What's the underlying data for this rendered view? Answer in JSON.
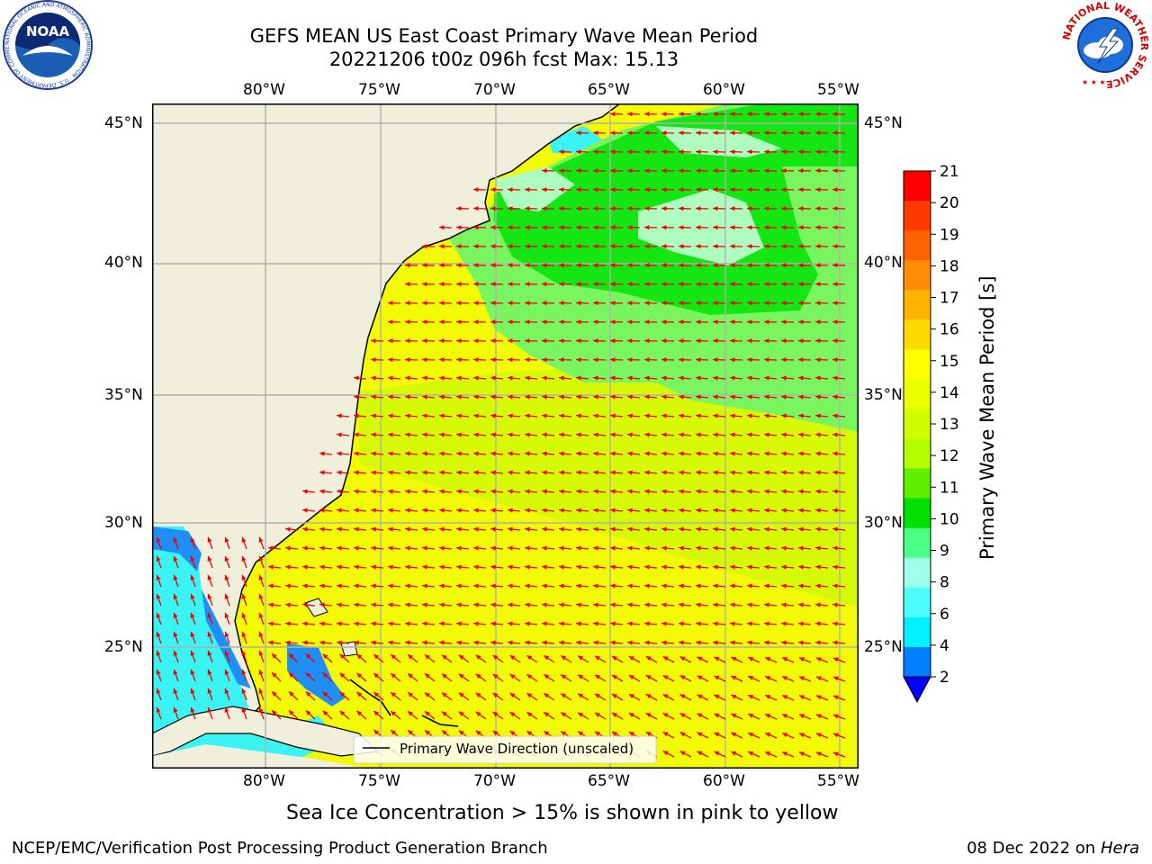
{
  "title": {
    "line1": "GEFS MEAN US East Coast Primary Wave Mean Period",
    "line2": "20221206 t00z 096h fcst   Max: 15.13"
  },
  "map": {
    "lon_labels": [
      "80°W",
      "75°W",
      "70°W",
      "65°W",
      "60°W",
      "55°W"
    ],
    "lat_labels": [
      "45°N",
      "40°N",
      "35°N",
      "30°N",
      "25°N"
    ],
    "legend_label": "Primary Wave Direction (unscaled)",
    "colors": {
      "land": "#efefdc",
      "yellow": "#f2fa05",
      "yellow_green": "#d6fa05",
      "light_green": "#79f55f",
      "green": "#14e614",
      "mint": "#aefcc0",
      "cyan": "#3af4f4",
      "blue": "#1f8ff5",
      "arrow": "#f00000",
      "grid": "#b0b0b0"
    }
  },
  "colorbar": {
    "label": "Primary Wave Mean Period [s]",
    "ticks": [
      "21",
      "20",
      "19",
      "18",
      "17",
      "16",
      "15",
      "14",
      "13",
      "12",
      "11",
      "10",
      "9",
      "8",
      "6",
      "4",
      "2"
    ],
    "colors": [
      "#ff0000",
      "#ff3a00",
      "#ff6200",
      "#ff8c00",
      "#ffb400",
      "#ffdc00",
      "#ffff00",
      "#eaff00",
      "#d2ff00",
      "#b4ff00",
      "#5ff000",
      "#00e100",
      "#4cff86",
      "#a0ffe8",
      "#4cfdfd",
      "#00f0ff",
      "#0080ff",
      "#0000ff"
    ]
  },
  "subnote": "Sea Ice Concentration > 15% is shown in pink to yellow",
  "footer": {
    "left": "NCEP/EMC/Verification Post Processing Product Generation Branch",
    "right_date": "08 Dec 2022 on",
    "right_machine": "Hera"
  },
  "logos": {
    "noaa_text": "NOAA",
    "noaa_ring": "NATIONAL OCEANIC AND ATMOSPHERIC ADMINISTRATION · U.S. DEPARTMENT OF COMMERCE",
    "nws_ring": "NATIONAL WEATHER SERVICE"
  }
}
